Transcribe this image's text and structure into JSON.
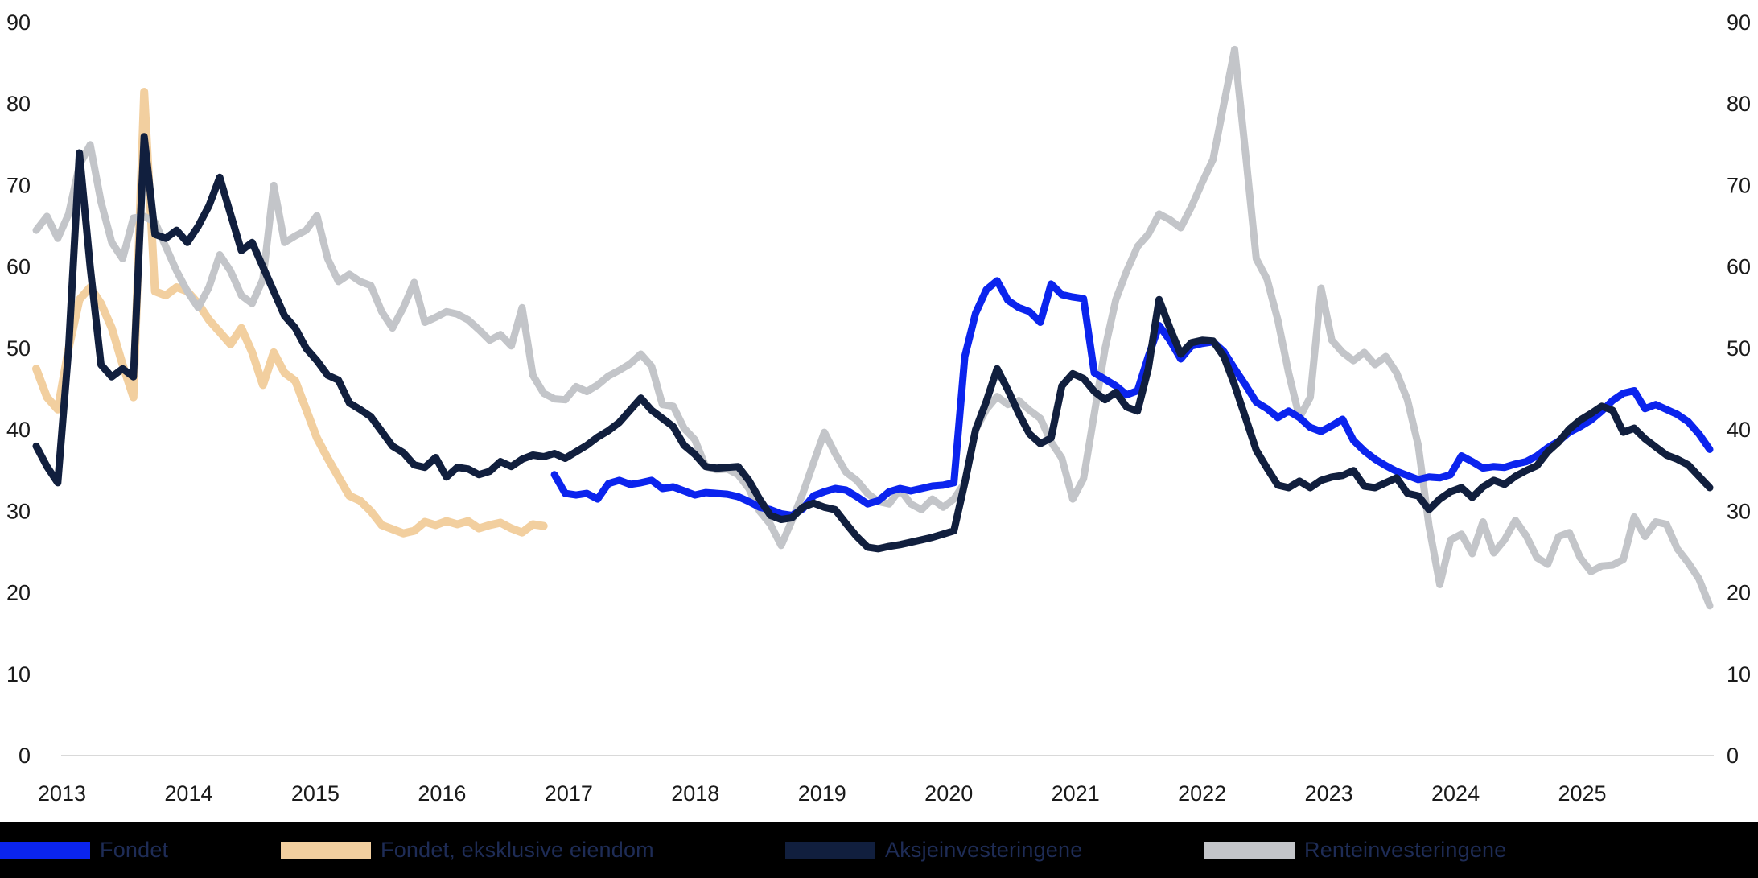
{
  "chart_data": {
    "type": "line",
    "title": "",
    "x_start": "2013-01",
    "x_end": "2025-12",
    "months_total": 156,
    "x_tick_labels": [
      "2013",
      "2014",
      "2015",
      "2016",
      "2017",
      "2018",
      "2019",
      "2020",
      "2021",
      "2022",
      "2023",
      "2024",
      "2025"
    ],
    "y_ticks": [
      0,
      10,
      20,
      30,
      40,
      50,
      60,
      70,
      80,
      90
    ],
    "ylim": [
      0,
      90
    ],
    "y_axis_sides": [
      "left",
      "right"
    ],
    "grid": false,
    "baseline_color": "#d9d9d9",
    "axis_text_color": "#1a1a1a",
    "legend_position": "bottom",
    "z_order": [
      1,
      3,
      0,
      2
    ],
    "series": [
      {
        "id": "fondet",
        "name": "Fondet",
        "color": "#0b24ee",
        "width": 9,
        "start_month_index": 48,
        "values": [
          34.5,
          32.2,
          32,
          32.2,
          31.5,
          33.4,
          33.8,
          33.3,
          33.5,
          33.8,
          32.8,
          33,
          32.5,
          32,
          32.3,
          32.2,
          32.1,
          31.8,
          31.2,
          30.5,
          30.2,
          29.7,
          29.5,
          30.3,
          31.9,
          32.4,
          32.8,
          32.6,
          31.8,
          30.9,
          31.3,
          32.4,
          32.8,
          32.5,
          32.8,
          33.1,
          33.2,
          33.5,
          49,
          54.3,
          57.2,
          58.3,
          55.9,
          55,
          54.5,
          53.2,
          57.9,
          56.6,
          56.3,
          56.1,
          47,
          46.2,
          45.4,
          44.3,
          44.8,
          49,
          52.8,
          51,
          48.7,
          50.3,
          50.6,
          50.8,
          49.6,
          47.5,
          45.5,
          43.4,
          42.6,
          41.5,
          42.3,
          41.5,
          40.3,
          39.8,
          40.5,
          41.3,
          38.7,
          37.4,
          36.4,
          35.6,
          34.9,
          34.4,
          33.9,
          34.2,
          34.1,
          34.5,
          36.8,
          36.1,
          35.3,
          35.5,
          35.4,
          35.8,
          36.1,
          36.8,
          37.8,
          38.6,
          39.7,
          40.4,
          41.2,
          42.3,
          43.6,
          44.5,
          44.8,
          42.6,
          43.1,
          42.5,
          41.9,
          41,
          39.5,
          37.6
        ]
      },
      {
        "id": "fondet-ekskl-eiendom",
        "name": "Fondet, eksklusive eiendom",
        "color": "#f2cf9f",
        "width": 10,
        "start_month_index": 0,
        "values": [
          47.5,
          44,
          42.5,
          50,
          56,
          57.5,
          55.5,
          52.5,
          48,
          44,
          81.5,
          57,
          56.5,
          57.5,
          57,
          55.5,
          53.5,
          52,
          50.5,
          52.5,
          49.5,
          45.5,
          49.5,
          47,
          46,
          42.5,
          39,
          36.5,
          34.2,
          31.9,
          31.3,
          30,
          28.3,
          27.8,
          27.3,
          27.6,
          28.7,
          28.3,
          28.8,
          28.4,
          28.8,
          27.9,
          28.3,
          28.6,
          27.9,
          27.4,
          28.4,
          28.2
        ]
      },
      {
        "id": "aksjeinvesteringene",
        "name": "Aksjeinvesteringene",
        "color": "#111f3e",
        "width": 9,
        "start_month_index": 0,
        "values": [
          38,
          35.5,
          33.5,
          50,
          74,
          60,
          48,
          46.5,
          47.5,
          46.5,
          76,
          64,
          63.5,
          64.5,
          63,
          65,
          67.5,
          71,
          66.5,
          62,
          63,
          60,
          57,
          54,
          52.5,
          50,
          48.5,
          46.7,
          46.1,
          43.3,
          42.5,
          41.6,
          39.8,
          38,
          37.2,
          35.7,
          35.4,
          36.6,
          34.2,
          35.4,
          35.2,
          34.5,
          34.9,
          36.1,
          35.5,
          36.4,
          36.9,
          36.7,
          37.1,
          36.5,
          37.3,
          38.1,
          39.1,
          39.9,
          40.9,
          42.4,
          43.9,
          42.4,
          41.4,
          40.4,
          38.1,
          37,
          35.5,
          35.3,
          35.4,
          35.5,
          33.8,
          31.5,
          29.5,
          29,
          29.2,
          30.5,
          31,
          30.5,
          30.2,
          28.5,
          26.9,
          25.6,
          25.4,
          25.7,
          25.9,
          26.2,
          26.5,
          26.8,
          27.2,
          27.6,
          33.5,
          40,
          43.5,
          47.5,
          44.9,
          42,
          39.5,
          38.3,
          39,
          45.4,
          46.9,
          46.3,
          44.7,
          43.7,
          44.6,
          42.8,
          42.3,
          47.5,
          56,
          52.5,
          49.3,
          50.7,
          51,
          50.9,
          49,
          45.5,
          41.5,
          37.5,
          35.3,
          33.2,
          32.9,
          33.7,
          32.9,
          33.8,
          34.2,
          34.4,
          35,
          33.1,
          32.9,
          33.5,
          34.1,
          32.2,
          31.9,
          30.2,
          31.5,
          32.4,
          32.9,
          31.7,
          33,
          33.8,
          33.3,
          34.3,
          35,
          35.6,
          37.3,
          38.5,
          40.1,
          41.2,
          42,
          42.9,
          42.4,
          39.7,
          40.2,
          38.9,
          37.9,
          36.9,
          36.4,
          35.7,
          34.3,
          32.9
        ]
      },
      {
        "id": "renteinvesteringene",
        "name": "Renteinvesteringene",
        "color": "#c3c5c9",
        "width": 9,
        "start_month_index": 0,
        "values": [
          64.5,
          66.2,
          63.5,
          66.5,
          72.5,
          75,
          68,
          63,
          61,
          66,
          66.2,
          65.5,
          62.5,
          59.5,
          57,
          55,
          57.5,
          61.5,
          59.5,
          56.5,
          55.5,
          58.5,
          70,
          63,
          63.8,
          64.5,
          66.3,
          61,
          58.2,
          59.1,
          58.2,
          57.7,
          54.5,
          52.5,
          55,
          58.1,
          53.2,
          53.8,
          54.5,
          54.2,
          53.5,
          52.3,
          51,
          51.7,
          50.3,
          55,
          46.7,
          44.5,
          43.8,
          43.7,
          45.3,
          44.7,
          45.5,
          46.6,
          47.3,
          48.1,
          49.3,
          47.8,
          43.1,
          42.9,
          40.2,
          38.8,
          35.5,
          35.1,
          35.2,
          34.5,
          32.8,
          30,
          28.4,
          25.8,
          28.9,
          32.2,
          36,
          39.7,
          37.1,
          34.8,
          33.8,
          32.2,
          31.2,
          30.9,
          32.7,
          30.9,
          30.2,
          31.5,
          30.5,
          31.5,
          33.5,
          40,
          42.5,
          44.1,
          43.1,
          43.6,
          42.4,
          41.4,
          38.5,
          36.5,
          31.5,
          34,
          42,
          50,
          56,
          59.5,
          62.5,
          64,
          66.5,
          65.8,
          64.8,
          67.4,
          70.4,
          73.2,
          80,
          86.7,
          74,
          61,
          58.5,
          53.5,
          47,
          41.5,
          44,
          57.4,
          51,
          49.5,
          48.5,
          49.5,
          48,
          49,
          47,
          43.7,
          38.1,
          28.2,
          21,
          26.5,
          27.2,
          24.8,
          28.7,
          24.9,
          26.5,
          28.9,
          27,
          24.3,
          23.5,
          26.9,
          27.4,
          24.3,
          22.6,
          23.3,
          23.4,
          24.1,
          29.3,
          26.9,
          28.7,
          28.4,
          25.4,
          23.7,
          21.7,
          18.4
        ]
      }
    ]
  },
  "legend": {
    "background": "#000000",
    "text_color": "#1e2c56",
    "items": [
      {
        "label": "Fondet",
        "color": "#0b24ee",
        "x": 0
      },
      {
        "label": "Fondet, eksklusive eiendom",
        "color": "#f2cf9f",
        "x": 349
      },
      {
        "label": "Aksjeinvesteringene",
        "color": "#111f3e",
        "x": 976
      },
      {
        "label": "Renteinvesteringene",
        "color": "#c3c5c9",
        "x": 1497
      }
    ]
  }
}
